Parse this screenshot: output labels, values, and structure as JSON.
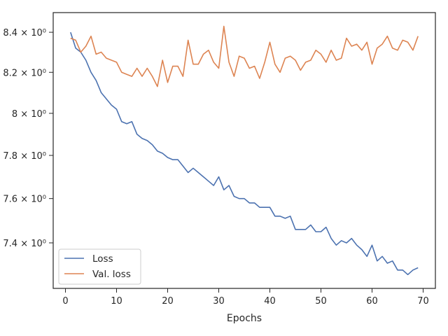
{
  "chart_data": {
    "type": "line",
    "title": "",
    "xlabel": "Epochs",
    "ylabel": "",
    "xlim": [
      -2.4,
      72.4
    ],
    "ylim": [
      7.2,
      8.5
    ],
    "y_scale": "log",
    "x_ticks": [
      0,
      10,
      20,
      30,
      40,
      50,
      60,
      70
    ],
    "y_ticks": [
      {
        "value": 7.4,
        "label": "7.4 × 10⁰"
      },
      {
        "value": 7.6,
        "label": "7.6 × 10⁰"
      },
      {
        "value": 7.8,
        "label": "7.8 × 10⁰"
      },
      {
        "value": 8.0,
        "label": "8 × 10⁰"
      },
      {
        "value": 8.2,
        "label": "8.2 × 10⁰"
      },
      {
        "value": 8.4,
        "label": "8.4 × 10⁰"
      }
    ],
    "grid": false,
    "legend_position": "lower-left",
    "x": [
      1,
      2,
      3,
      4,
      5,
      6,
      7,
      8,
      9,
      10,
      11,
      12,
      13,
      14,
      15,
      16,
      17,
      18,
      19,
      20,
      21,
      22,
      23,
      24,
      25,
      26,
      27,
      28,
      29,
      30,
      31,
      32,
      33,
      34,
      35,
      36,
      37,
      38,
      39,
      40,
      41,
      42,
      43,
      44,
      45,
      46,
      47,
      48,
      49,
      50,
      51,
      52,
      53,
      54,
      55,
      56,
      57,
      58,
      59,
      60,
      61,
      62,
      63,
      64,
      65,
      66,
      67,
      68,
      69
    ],
    "series": [
      {
        "name": "Loss",
        "color": "#4c72b0",
        "values": [
          8.4,
          8.32,
          8.3,
          8.26,
          8.2,
          8.16,
          8.1,
          8.07,
          8.04,
          8.02,
          7.96,
          7.95,
          7.96,
          7.9,
          7.88,
          7.87,
          7.85,
          7.82,
          7.81,
          7.79,
          7.78,
          7.78,
          7.75,
          7.72,
          7.74,
          7.72,
          7.7,
          7.68,
          7.66,
          7.7,
          7.64,
          7.66,
          7.61,
          7.6,
          7.6,
          7.58,
          7.58,
          7.56,
          7.56,
          7.56,
          7.52,
          7.52,
          7.51,
          7.52,
          7.46,
          7.46,
          7.46,
          7.48,
          7.45,
          7.45,
          7.47,
          7.42,
          7.39,
          7.41,
          7.4,
          7.42,
          7.39,
          7.37,
          7.34,
          7.39,
          7.32,
          7.34,
          7.31,
          7.32,
          7.28,
          7.28,
          7.26,
          7.28,
          7.29
        ]
      },
      {
        "name": "Val. loss",
        "color": "#dd8452",
        "values": [
          8.37,
          8.36,
          8.3,
          8.33,
          8.38,
          8.29,
          8.3,
          8.27,
          8.26,
          8.25,
          8.2,
          8.19,
          8.18,
          8.22,
          8.18,
          8.22,
          8.18,
          8.13,
          8.26,
          8.15,
          8.23,
          8.23,
          8.18,
          8.36,
          8.24,
          8.24,
          8.29,
          8.31,
          8.25,
          8.22,
          8.43,
          8.25,
          8.18,
          8.28,
          8.27,
          8.22,
          8.23,
          8.17,
          8.25,
          8.35,
          8.24,
          8.2,
          8.27,
          8.28,
          8.26,
          8.21,
          8.25,
          8.26,
          8.31,
          8.29,
          8.25,
          8.31,
          8.26,
          8.27,
          8.37,
          8.33,
          8.34,
          8.31,
          8.35,
          8.24,
          8.32,
          8.34,
          8.38,
          8.32,
          8.31,
          8.36,
          8.35,
          8.31,
          8.38
        ]
      }
    ]
  }
}
